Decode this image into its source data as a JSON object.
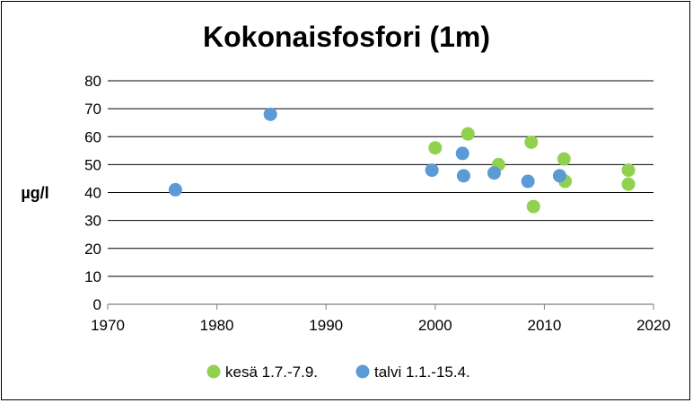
{
  "chart_data": {
    "type": "scatter",
    "title": "Kokonaisfosfori (1m)",
    "xlabel": "",
    "ylabel": "µg/l",
    "xlim": [
      1970,
      2020
    ],
    "ylim": [
      0,
      80
    ],
    "x_ticks": [
      1970,
      1980,
      1990,
      2000,
      2010,
      2020
    ],
    "y_ticks": [
      0,
      10,
      20,
      30,
      40,
      50,
      60,
      70,
      80
    ],
    "grid": true,
    "legend_position": "bottom",
    "series": [
      {
        "name": "kesä 1.7.-7.9.",
        "color": "#92d050",
        "points": [
          {
            "x": 2000.0,
            "y": 56
          },
          {
            "x": 2003.0,
            "y": 61
          },
          {
            "x": 2005.8,
            "y": 50
          },
          {
            "x": 2008.8,
            "y": 58
          },
          {
            "x": 2009.0,
            "y": 35
          },
          {
            "x": 2011.8,
            "y": 52
          },
          {
            "x": 2011.9,
            "y": 44
          },
          {
            "x": 2017.7,
            "y": 48
          },
          {
            "x": 2017.7,
            "y": 43
          }
        ]
      },
      {
        "name": "talvi 1.1.-15.4.",
        "color": "#5b9bd5",
        "points": [
          {
            "x": 1976.2,
            "y": 41
          },
          {
            "x": 1984.9,
            "y": 68
          },
          {
            "x": 1999.7,
            "y": 48
          },
          {
            "x": 2002.5,
            "y": 54
          },
          {
            "x": 2002.6,
            "y": 46
          },
          {
            "x": 2005.4,
            "y": 47
          },
          {
            "x": 2008.5,
            "y": 44
          },
          {
            "x": 2011.4,
            "y": 46
          }
        ]
      }
    ]
  }
}
